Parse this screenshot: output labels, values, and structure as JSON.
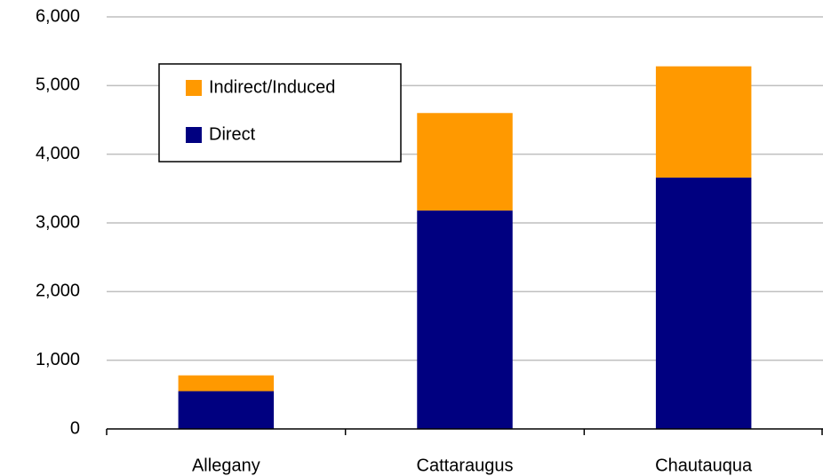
{
  "chart_data": {
    "type": "stacked_bar",
    "categories": [
      "Allegany",
      "Cattaraugus",
      "Chautauqua"
    ],
    "series": [
      {
        "name": "Direct",
        "color": "#000080",
        "values": [
          550,
          3180,
          3660
        ]
      },
      {
        "name": "Indirect/Induced",
        "color": "#ff9900",
        "values": [
          230,
          1420,
          1620
        ]
      }
    ],
    "ylim": [
      0,
      6000
    ],
    "yticks": [
      0,
      {
        "value": 1000,
        "label": "1,000"
      },
      {
        "value": 2000,
        "label": "2,000"
      },
      {
        "value": 3000,
        "label": "3,000"
      },
      {
        "value": 4000,
        "label": "4,000"
      },
      {
        "value": 5000,
        "label": "5,000"
      },
      {
        "value": 6000,
        "label": "6,000"
      }
    ],
    "grid": true
  }
}
